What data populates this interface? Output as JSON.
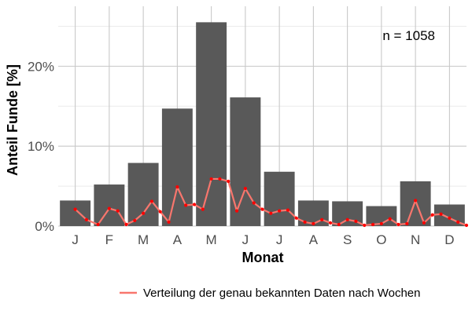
{
  "chart_data": {
    "type": "bar",
    "xlabel": "Monat",
    "ylabel": "Anteil Funde [%]",
    "annotation": "n = 1058",
    "categories": [
      "J",
      "F",
      "M",
      "A",
      "M",
      "J",
      "J",
      "A",
      "S",
      "O",
      "N",
      "D"
    ],
    "ylim": [
      0,
      27.5
    ],
    "yticks": [
      0,
      10,
      20
    ],
    "ytick_labels": [
      "0%",
      "10%",
      "20%"
    ],
    "grid": true,
    "legend_position": "bottom",
    "series": [
      {
        "type": "bar",
        "values": [
          3.2,
          5.2,
          7.9,
          14.7,
          25.5,
          16.1,
          6.8,
          3.2,
          3.1,
          2.5,
          5.6,
          2.7
        ],
        "color": "#595959"
      },
      {
        "type": "line",
        "name": "Verteilung der genau bekannten Daten nach Wochen",
        "color": "#f8766d",
        "marker_color": "#ff0000",
        "x": [
          1.0,
          1.33,
          1.67,
          2.0,
          2.25,
          2.5,
          2.75,
          3.0,
          3.25,
          3.5,
          3.75,
          4.0,
          4.25,
          4.5,
          4.75,
          5.0,
          5.25,
          5.5,
          5.75,
          6.0,
          6.25,
          6.5,
          6.75,
          7.0,
          7.25,
          7.5,
          7.75,
          8.0,
          8.25,
          8.5,
          8.75,
          9.0,
          9.25,
          9.5,
          9.75,
          10.0,
          10.25,
          10.5,
          10.75,
          11.0,
          11.25,
          11.5,
          11.75,
          12.0,
          12.25,
          12.5
        ],
        "values": [
          2.1,
          0.8,
          0.2,
          2.2,
          1.9,
          0.2,
          0.7,
          1.6,
          3.1,
          1.8,
          0.5,
          4.9,
          2.6,
          2.7,
          2.1,
          5.9,
          5.9,
          5.6,
          1.9,
          4.7,
          2.9,
          2.1,
          1.6,
          1.9,
          2.0,
          1.0,
          0.5,
          0.3,
          0.8,
          0.4,
          0.2,
          0.8,
          0.6,
          0.1,
          0.2,
          0.3,
          0.9,
          0.2,
          0.3,
          3.2,
          0.4,
          1.4,
          1.5,
          1.0,
          0.5,
          0.1
        ]
      }
    ]
  }
}
